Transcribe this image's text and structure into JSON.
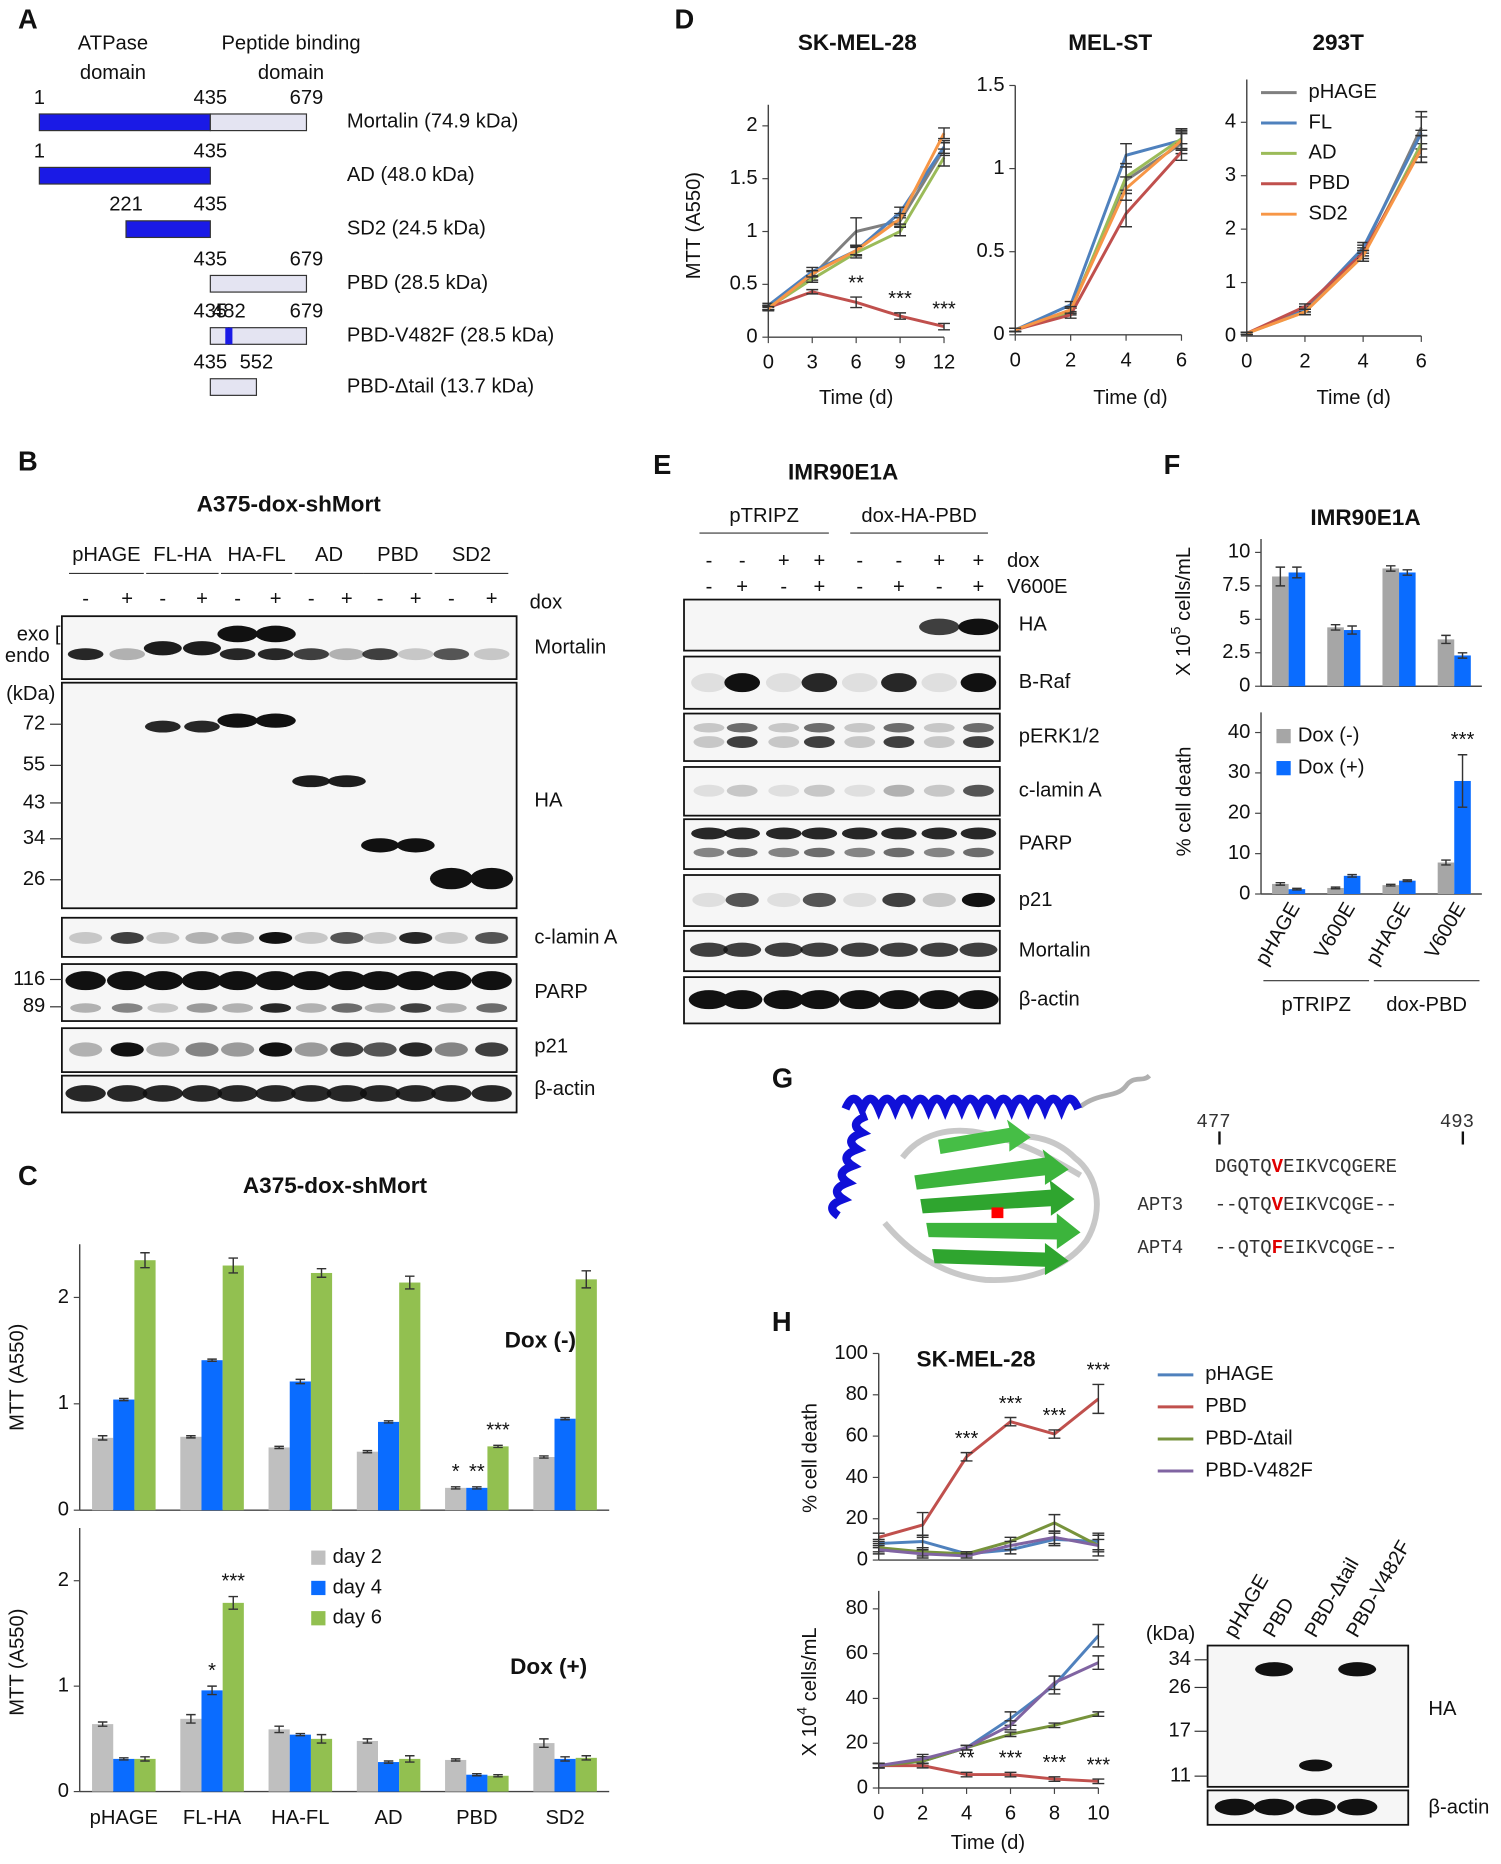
{
  "panel_labels": [
    "A",
    "B",
    "C",
    "D",
    "E",
    "F",
    "G",
    "H"
  ],
  "panel_a": {
    "headers": [
      [
        "ATPase",
        "domain"
      ],
      [
        "Peptide binding",
        "domain"
      ]
    ],
    "constructs": [
      {
        "label": "Mortalin (74.9 kDa)",
        "positions": [
          1,
          435,
          679
        ],
        "segment_colors": [
          "#1a1ae6",
          "#e4e4f2"
        ]
      },
      {
        "label": "AD (48.0 kDa)",
        "positions": [
          1,
          435
        ],
        "segment_colors": [
          "#1a1ae6"
        ]
      },
      {
        "label": "SD2 (24.5 kDa)",
        "positions": [
          221,
          435
        ],
        "segment_colors": [
          "#1a1ae6"
        ]
      },
      {
        "label": "PBD (28.5 kDa)",
        "positions": [
          435,
          679
        ],
        "segment_colors": [
          "#e4e4f2"
        ]
      },
      {
        "label": "PBD-V482F (28.5 kDa)",
        "positions": [
          435,
          482,
          679
        ],
        "segment_colors": [
          "#e4e4f2",
          "#e4e4f2"
        ],
        "mark_color": "#1a1ae6"
      },
      {
        "label": "PBD-Δtail (13.7 kDa)",
        "positions": [
          435,
          552
        ],
        "segment_colors": [
          "#e4e4f2"
        ]
      }
    ]
  },
  "panel_b": {
    "title": "A375-dox-shMort",
    "groups": [
      "pHAGE",
      "FL-HA",
      "HA-FL",
      "AD",
      "PBD",
      "SD2"
    ],
    "lane_signs": [
      "-",
      "+"
    ],
    "dox_label": "dox",
    "blots": [
      "Mortalin",
      "HA",
      "c-lamin A",
      "PARP",
      "p21",
      "β-actin"
    ],
    "mortalin_markers": [
      "exo [",
      "endo"
    ],
    "kda_label": "(kDa)",
    "ha_markers": [
      72,
      55,
      43,
      34,
      26
    ],
    "parp_markers": [
      116,
      89
    ]
  },
  "panel_e": {
    "title": "IMR90E1A",
    "groups": [
      "pTRIPZ",
      "dox-HA-PBD"
    ],
    "rows": [
      {
        "label": "dox",
        "signs": [
          "-",
          "-",
          "+",
          "+",
          "-",
          "-",
          "+",
          "+"
        ]
      },
      {
        "label": "V600E",
        "signs": [
          "-",
          "+",
          "-",
          "+",
          "-",
          "+",
          "-",
          "+"
        ]
      }
    ],
    "blots": [
      "HA",
      "B-Raf",
      "pERK1/2",
      "c-lamin A",
      "PARP",
      "p21",
      "Mortalin",
      "β-actin"
    ]
  },
  "panel_g": {
    "positions": [
      477,
      493
    ],
    "highlight_color": "#e00000",
    "reference": {
      "pre": "DGQTQ",
      "highlight": "V",
      "post": "EIKVCQGERE"
    },
    "aptamers": [
      {
        "label": "APT3",
        "pre": "--QTQ",
        "highlight": "V",
        "post": "EIKVCQGE--"
      },
      {
        "label": "APT4",
        "pre": "--QTQ",
        "highlight": "F",
        "post": "EIKVCQGE--"
      }
    ]
  },
  "panel_h_blot": {
    "kda_label": "(kDa)",
    "markers": [
      34,
      26,
      17,
      11
    ],
    "lanes": [
      "pHAGE",
      "PBD",
      "PBD-Δtail",
      "PBD-V482F"
    ],
    "blots": [
      "HA",
      "β-actin"
    ]
  },
  "chart_data": [
    {
      "type": "line",
      "title": "SK-MEL-28",
      "y_label": "MTT (A550)",
      "x_label": "Time (d)",
      "x": [
        0,
        3,
        6,
        9,
        12
      ],
      "xlim": [
        0,
        12
      ],
      "xticks": [
        0,
        3,
        6,
        9,
        12
      ],
      "ylim": [
        0,
        2.2
      ],
      "yticks": [
        0,
        0.5,
        1,
        1.5,
        2
      ],
      "series": [
        {
          "color": "#7f7f7f",
          "values": [
            0.28,
            0.58,
            1.0,
            1.1,
            1.78
          ],
          "errors": [
            0.02,
            0.04,
            0.13,
            0.05,
            0.06
          ]
        },
        {
          "color": "#4f81bd",
          "values": [
            0.3,
            0.62,
            0.82,
            1.18,
            1.8
          ],
          "errors": [
            0.02,
            0.04,
            0.05,
            0.05,
            0.06
          ]
        },
        {
          "color": "#9bbb59",
          "values": [
            0.28,
            0.55,
            0.8,
            1.0,
            1.7
          ],
          "errors": [
            0.02,
            0.03,
            0.05,
            0.04,
            0.08
          ]
        },
        {
          "color": "#c0504d",
          "values": [
            0.28,
            0.43,
            0.33,
            0.2,
            0.1
          ],
          "errors": [
            0.02,
            0.02,
            0.05,
            0.03,
            0.03
          ],
          "annotations": [
            null,
            null,
            "**",
            "***",
            "***"
          ]
        },
        {
          "color": "#f79646",
          "values": [
            0.27,
            0.6,
            0.82,
            1.12,
            1.93
          ],
          "errors": [
            0.02,
            0.03,
            0.04,
            0.05,
            0.05
          ]
        }
      ]
    },
    {
      "type": "line",
      "title": "MEL-ST",
      "x_label": "Time (d)",
      "x": [
        0,
        2,
        4,
        6
      ],
      "xlim": [
        0,
        6
      ],
      "xticks": [
        0,
        2,
        4,
        6
      ],
      "ylim": [
        0,
        1.5
      ],
      "yticks": [
        0,
        0.5,
        1,
        1.5
      ],
      "series": [
        {
          "color": "#7f7f7f",
          "values": [
            0.03,
            0.15,
            0.93,
            1.15
          ],
          "errors": [
            0.01,
            0.02,
            0.08,
            0.06
          ]
        },
        {
          "color": "#4f81bd",
          "values": [
            0.03,
            0.18,
            1.08,
            1.17
          ],
          "errors": [
            0.01,
            0.02,
            0.07,
            0.05
          ]
        },
        {
          "color": "#9bbb59",
          "values": [
            0.03,
            0.14,
            0.95,
            1.18
          ],
          "errors": [
            0.01,
            0.02,
            0.08,
            0.06
          ]
        },
        {
          "color": "#c0504d",
          "values": [
            0.03,
            0.12,
            0.73,
            1.1
          ],
          "errors": [
            0.01,
            0.02,
            0.08,
            0.05
          ]
        },
        {
          "color": "#f79646",
          "values": [
            0.03,
            0.15,
            0.88,
            1.17
          ],
          "errors": [
            0.01,
            0.02,
            0.07,
            0.06
          ]
        }
      ]
    },
    {
      "type": "line",
      "title": "293T",
      "x_label": "Time (d)",
      "legend": "upper left",
      "x": [
        0,
        2,
        4,
        6
      ],
      "xlim": [
        0,
        6
      ],
      "xticks": [
        0,
        2,
        4,
        6
      ],
      "ylim": [
        0,
        4.8
      ],
      "yticks": [
        0,
        1,
        2,
        3,
        4
      ],
      "series": [
        {
          "name": "pHAGE",
          "color": "#7f7f7f",
          "values": [
            0.05,
            0.5,
            1.6,
            3.9
          ],
          "errors": [
            0.02,
            0.05,
            0.1,
            0.3
          ]
        },
        {
          "name": "FL",
          "color": "#4f81bd",
          "values": [
            0.05,
            0.5,
            1.65,
            3.8
          ],
          "errors": [
            0.02,
            0.05,
            0.1,
            0.3
          ]
        },
        {
          "name": "AD",
          "color": "#9bbb59",
          "values": [
            0.05,
            0.45,
            1.5,
            3.6
          ],
          "errors": [
            0.02,
            0.05,
            0.1,
            0.25
          ]
        },
        {
          "name": "PBD",
          "color": "#c0504d",
          "values": [
            0.05,
            0.55,
            1.55,
            3.5
          ],
          "errors": [
            0.02,
            0.05,
            0.1,
            0.25
          ]
        },
        {
          "name": "SD2",
          "color": "#f79646",
          "values": [
            0.05,
            0.45,
            1.5,
            3.5
          ],
          "errors": [
            0.02,
            0.05,
            0.1,
            0.25
          ]
        }
      ]
    },
    {
      "type": "bar",
      "title": "A375-dox-shMort",
      "annotation": "Dox (-)",
      "y_label": "MTT (A550)",
      "categories": [
        null,
        null,
        null,
        null,
        null,
        null
      ],
      "ylim": [
        0,
        2.5
      ],
      "yticks": [
        0,
        1,
        2
      ],
      "series": [
        {
          "color": "#bfbfbf",
          "values": [
            0.68,
            0.69,
            0.59,
            0.55,
            0.21,
            0.5
          ],
          "errors": [
            0.02,
            0.01,
            0.01,
            0.01,
            0.01,
            0.01
          ],
          "annotations": [
            null,
            null,
            null,
            null,
            "*",
            null
          ]
        },
        {
          "color": "#0a6cff",
          "values": [
            1.04,
            1.41,
            1.21,
            0.83,
            0.21,
            0.86
          ],
          "errors": [
            0.01,
            0.01,
            0.02,
            0.01,
            0.01,
            0.01
          ],
          "annotations": [
            null,
            null,
            null,
            null,
            "**",
            null
          ]
        },
        {
          "color": "#92c050",
          "values": [
            2.35,
            2.3,
            2.23,
            2.14,
            0.6,
            2.17
          ],
          "errors": [
            0.07,
            0.07,
            0.04,
            0.06,
            0.01,
            0.08
          ],
          "annotations": [
            null,
            null,
            null,
            null,
            "***",
            null
          ]
        }
      ]
    },
    {
      "type": "bar",
      "annotation": "Dox (+)",
      "y_label": "MTT (A550)",
      "legend": "upper center",
      "categories": [
        "pHAGE",
        "FL-HA",
        "HA-FL",
        "AD",
        "PBD",
        "SD2"
      ],
      "ylim": [
        0,
        2.5
      ],
      "yticks": [
        0,
        1,
        2
      ],
      "series": [
        {
          "name": "day 2",
          "color": "#bfbfbf",
          "values": [
            0.64,
            0.69,
            0.59,
            0.48,
            0.3,
            0.46
          ],
          "errors": [
            0.02,
            0.04,
            0.03,
            0.02,
            0.01,
            0.04
          ]
        },
        {
          "name": "day 4",
          "color": "#0a6cff",
          "values": [
            0.31,
            0.96,
            0.54,
            0.28,
            0.16,
            0.31
          ],
          "errors": [
            0.01,
            0.04,
            0.01,
            0.01,
            0.01,
            0.02
          ],
          "annotations": [
            null,
            "*",
            null,
            null,
            null,
            null
          ]
        },
        {
          "name": "day 6",
          "color": "#92c050",
          "values": [
            0.31,
            1.79,
            0.5,
            0.31,
            0.15,
            0.32
          ],
          "errors": [
            0.02,
            0.06,
            0.04,
            0.03,
            0.01,
            0.02
          ],
          "annotations": [
            null,
            "***",
            null,
            null,
            null,
            null
          ]
        }
      ]
    },
    {
      "type": "bar",
      "title": "IMR90E1A",
      "y_label": {
        "pre": "X 10",
        "sup": "5",
        "post": " cells/mL"
      },
      "categories": [
        null,
        null,
        null,
        null
      ],
      "ylim": [
        0,
        11
      ],
      "yticks": [
        0,
        2.5,
        5,
        7.5,
        10
      ],
      "series": [
        {
          "color": "#a6a6a6",
          "values": [
            8.2,
            4.4,
            8.8,
            3.5
          ],
          "errors": [
            0.7,
            0.2,
            0.2,
            0.3
          ]
        },
        {
          "color": "#0a6cff",
          "values": [
            8.5,
            4.2,
            8.5,
            2.3
          ],
          "errors": [
            0.4,
            0.3,
            0.2,
            0.2
          ]
        }
      ]
    },
    {
      "type": "bar",
      "y_label": "% cell death",
      "legend": "upper left",
      "categories": [
        "pHAGE",
        "V600E",
        "pHAGE",
        "V600E"
      ],
      "groups": [
        "pTRIPZ",
        "dox-PBD"
      ],
      "ylim": [
        0,
        45
      ],
      "yticks": [
        0,
        10,
        20,
        30,
        40
      ],
      "series": [
        {
          "name": "Dox (-)",
          "color": "#a6a6a6",
          "values": [
            2.5,
            1.5,
            2.2,
            7.8
          ],
          "errors": [
            0.3,
            0.2,
            0.2,
            0.6
          ]
        },
        {
          "name": "Dox (+)",
          "color": "#0a6cff",
          "values": [
            1.2,
            4.5,
            3.3,
            28
          ],
          "errors": [
            0.2,
            0.3,
            0.2,
            6.5
          ],
          "annotations": [
            null,
            null,
            null,
            "***"
          ]
        }
      ]
    },
    {
      "type": "line",
      "title": "SK-MEL-28",
      "y_label": "% cell death",
      "legend": "right",
      "x": [
        0,
        2,
        4,
        6,
        8,
        10
      ],
      "xlim": [
        0,
        10
      ],
      "ylim": [
        0,
        100
      ],
      "yticks": [
        0,
        20,
        40,
        60,
        80,
        100
      ],
      "series": [
        {
          "name": "pHAGE",
          "color": "#4f81bd",
          "values": [
            8,
            9,
            3,
            5,
            10,
            9
          ],
          "errors": [
            2,
            3,
            1,
            2,
            3,
            4
          ]
        },
        {
          "name": "PBD",
          "color": "#c0504d",
          "values": [
            11,
            17,
            50,
            67,
            61,
            78
          ],
          "errors": [
            2,
            6,
            2,
            2,
            2,
            7
          ],
          "annotations": [
            null,
            null,
            "***",
            "***",
            "***",
            "***"
          ]
        },
        {
          "name": "PBD-Δtail",
          "color": "#77933c",
          "values": [
            6,
            4,
            3,
            9,
            18,
            7
          ],
          "errors": [
            2,
            2,
            1,
            2,
            4,
            3
          ]
        },
        {
          "name": "PBD-V482F",
          "color": "#8064a2",
          "values": [
            5,
            3,
            2,
            7,
            11,
            7
          ],
          "errors": [
            2,
            2,
            1,
            2,
            3,
            5
          ]
        }
      ]
    },
    {
      "type": "line",
      "y_label": {
        "pre": "X 10",
        "sup": "4",
        "post": " cells/mL"
      },
      "x_label": "Time (d)",
      "x": [
        0,
        2,
        4,
        6,
        8,
        10
      ],
      "xlim": [
        0,
        10
      ],
      "xticks": [
        0,
        2,
        4,
        6,
        8,
        10
      ],
      "ylim": [
        0,
        88
      ],
      "yticks": [
        0,
        20,
        40,
        60,
        80
      ],
      "series": [
        {
          "color": "#4f81bd",
          "values": [
            10,
            12,
            18,
            31,
            46,
            68
          ],
          "errors": [
            1,
            2,
            1,
            3,
            4,
            5
          ]
        },
        {
          "color": "#c0504d",
          "values": [
            10,
            10,
            6,
            6,
            4,
            3
          ],
          "errors": [
            1,
            1,
            1,
            1,
            1,
            1
          ],
          "annotations": [
            null,
            null,
            "**",
            "***",
            "***",
            "***"
          ]
        },
        {
          "color": "#77933c",
          "values": [
            10,
            12,
            18,
            24,
            28,
            33
          ],
          "errors": [
            1,
            1,
            1,
            1,
            1,
            1
          ]
        },
        {
          "color": "#8064a2",
          "values": [
            10,
            13,
            18,
            28,
            47,
            56
          ],
          "errors": [
            1,
            2,
            1,
            2,
            3,
            3
          ]
        }
      ]
    }
  ]
}
